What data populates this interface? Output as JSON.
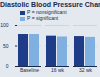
{
  "chart_data": {
    "type": "bar",
    "title": "Diastolic Blood Pressure Changes",
    "categories": [
      "Baseline",
      "16 wk",
      "32 wk"
    ],
    "series": [
      {
        "name": "P = nonsignificant",
        "color": "#1f3c88",
        "values": [
          78,
          74,
          73
        ]
      },
      {
        "name": "P = significant",
        "color": "#7fb0e0",
        "values": [
          78,
          72,
          71
        ]
      }
    ],
    "ylim": [
      0,
      100
    ],
    "yticks": [
      0,
      50,
      100
    ],
    "grid": true,
    "legend": "top-left"
  }
}
